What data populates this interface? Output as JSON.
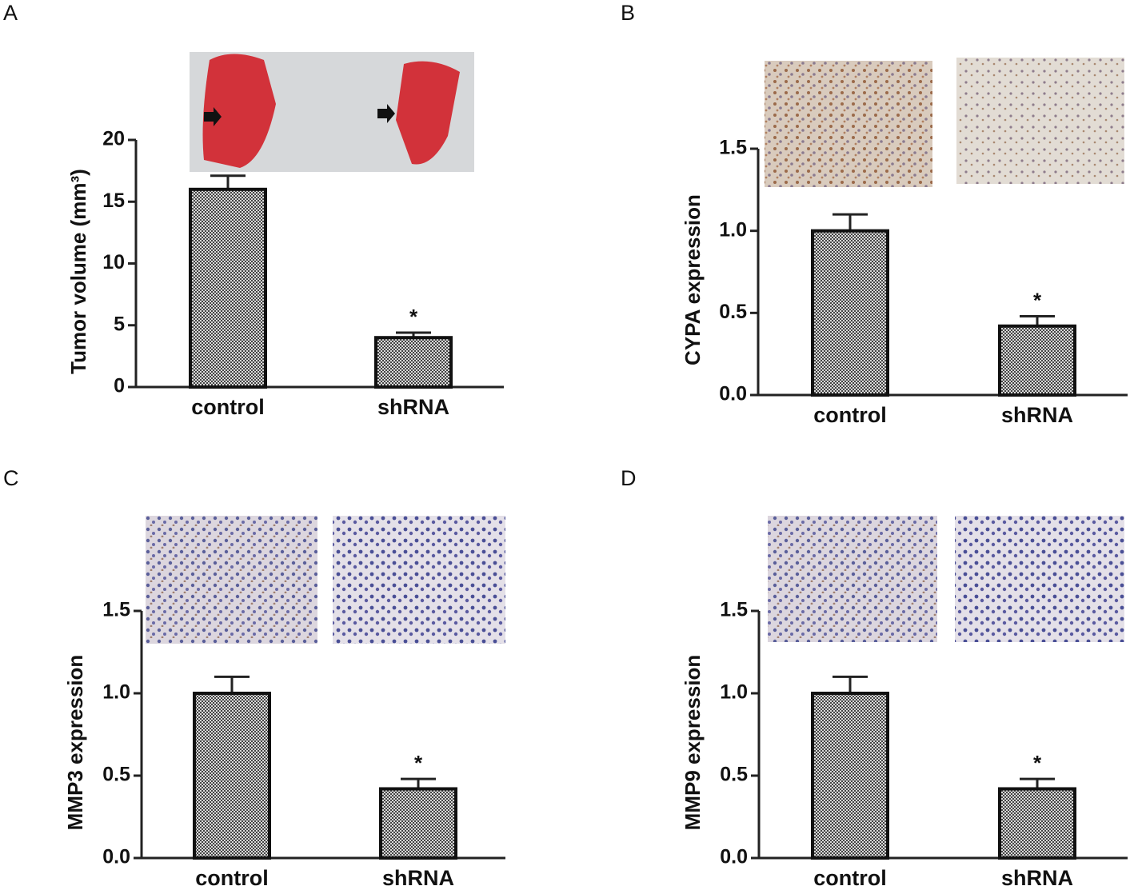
{
  "chart_data": [
    {
      "type": "bar",
      "panel_label": "A",
      "ylabel": "Tumor volume (mm³)",
      "categories": [
        "control",
        "shRNA"
      ],
      "values": [
        16,
        4
      ],
      "errors": [
        1.1,
        0.4
      ],
      "value_annotations": [
        null,
        "*"
      ],
      "ylim": [
        0,
        20
      ],
      "yticks": [
        0,
        5,
        10,
        15,
        20
      ],
      "color": "#555555"
    },
    {
      "type": "bar",
      "panel_label": "B",
      "ylabel": "CYPA expression",
      "categories": [
        "control",
        "shRNA"
      ],
      "values": [
        1.0,
        0.42
      ],
      "errors": [
        0.1,
        0.06
      ],
      "value_annotations": [
        null,
        "*"
      ],
      "ylim": [
        0,
        1.5
      ],
      "yticks": [
        {
          "value": 0,
          "label": "0.0"
        },
        0.5,
        {
          "value": 1,
          "label": "1.0"
        },
        1.5
      ],
      "color": "#555555"
    },
    {
      "type": "bar",
      "panel_label": "C",
      "ylabel": "MMP3 expression",
      "categories": [
        "control",
        "shRNA"
      ],
      "values": [
        1.0,
        0.42
      ],
      "errors": [
        0.1,
        0.06
      ],
      "value_annotations": [
        null,
        "*"
      ],
      "ylim": [
        0,
        1.5
      ],
      "yticks": [
        {
          "value": 0,
          "label": "0.0"
        },
        0.5,
        {
          "value": 1,
          "label": "1.0"
        },
        1.5
      ],
      "color": "#555555"
    },
    {
      "type": "bar",
      "panel_label": "D",
      "ylabel": "MMP9 expression",
      "categories": [
        "control",
        "shRNA"
      ],
      "values": [
        1.0,
        0.42
      ],
      "errors": [
        0.1,
        0.06
      ],
      "value_annotations": [
        null,
        "*"
      ],
      "ylim": [
        0,
        1.5
      ],
      "yticks": [
        {
          "value": 0,
          "label": "0.0"
        },
        0.5,
        {
          "value": 1,
          "label": "1.0"
        },
        1.5
      ],
      "color": "#555555"
    }
  ]
}
